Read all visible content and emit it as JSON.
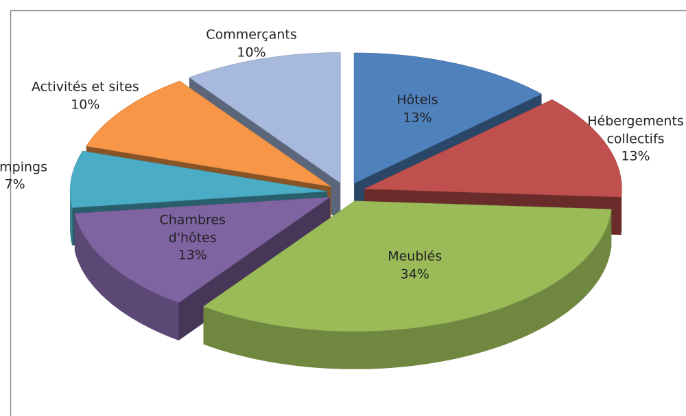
{
  "chart_data": {
    "type": "pie3d",
    "categories": [
      "Hôtels",
      "Hébergements collectifs",
      "Meublés",
      "Chambres d'hôtes",
      "Campings",
      "Activités et sites",
      "Commerçants"
    ],
    "values": [
      13,
      13,
      34,
      13,
      7,
      10,
      10
    ],
    "value_labels": [
      "13%",
      "13%",
      "34%",
      "13%",
      "7%",
      "10%",
      "10%"
    ],
    "colors": [
      "#4f81bd",
      "#c0504d",
      "#9bbb59",
      "#8064a2",
      "#4bacc6",
      "#f79646",
      "#a7b9dd"
    ]
  }
}
